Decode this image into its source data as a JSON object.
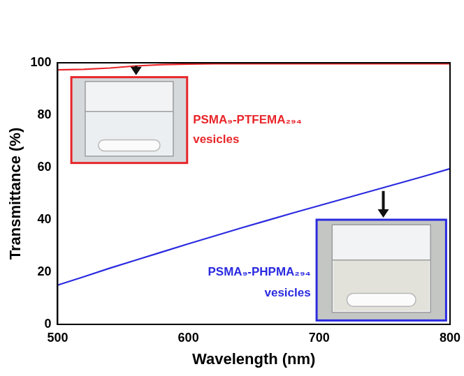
{
  "chart_data": {
    "type": "line",
    "x_label": "Wavelength (nm)",
    "y_label": "Transmittance (%)",
    "x": [
      500,
      520,
      540,
      560,
      580,
      600,
      620,
      640,
      660,
      680,
      700,
      720,
      740,
      760,
      780,
      800
    ],
    "series": [
      {
        "name": "PSMA₉-PTFEMA₂₉₄ vesicles",
        "color": "#e8262a",
        "values": [
          97.3,
          97.5,
          98.0,
          98.8,
          99.3,
          99.5,
          99.6,
          99.6,
          99.6,
          99.6,
          99.6,
          99.6,
          99.6,
          99.6,
          99.6,
          99.6
        ]
      },
      {
        "name": "PSMA₉-PHPMA₂₉₄ vesicles",
        "color": "#2a2ae0",
        "values": [
          15,
          18.2,
          21.5,
          24.6,
          27.7,
          30.8,
          33.8,
          36.8,
          39.7,
          42.6,
          45.4,
          48.2,
          51,
          53.8,
          56.6,
          59.5
        ]
      }
    ],
    "xlim": [
      500,
      800
    ],
    "xticks": [
      500,
      600,
      700,
      800
    ],
    "ylim": [
      0,
      100
    ],
    "yticks": [
      0,
      20,
      40,
      60,
      80,
      100
    ],
    "grid": false
  }
}
